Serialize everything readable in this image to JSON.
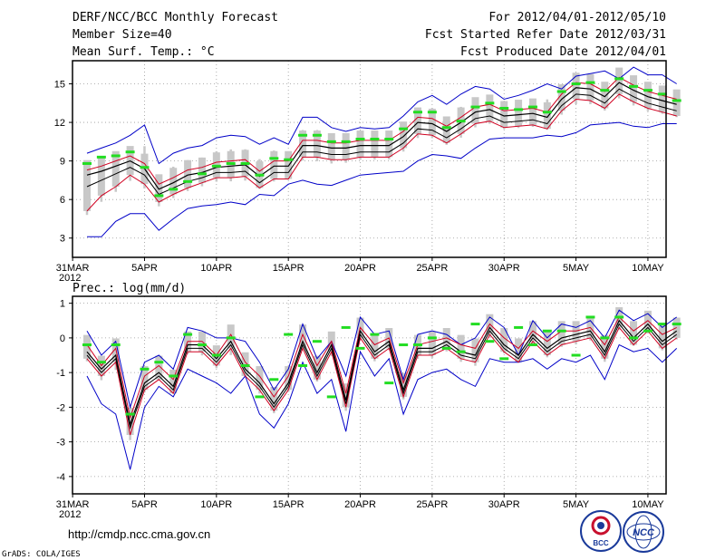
{
  "header": {
    "left": [
      "DERF/NCC/BCC Monthly Forecast",
      "Member Size=40",
      "Mean Surf. Temp.: °C"
    ],
    "right": [
      "For 2012/04/01-2012/05/10",
      "Fcst Started Refer Date 2012/03/31",
      "Fcst Produced Date 2012/04/01"
    ]
  },
  "footer": {
    "url": "http://cmdp.ncc.cma.gov.cn",
    "credit": "GrADS: COLA/IGES",
    "logo_text": "BCC",
    "logo2_text": "NCC"
  },
  "colors": {
    "mean": "#000000",
    "spread": "#d00020",
    "envelope": "#0000c8",
    "box": "#c8c8c8",
    "median": "#22dd22"
  },
  "chart_data": [
    {
      "type": "line",
      "title": "Mean Surf. Temp.: °C",
      "x_tick_labels": [
        "31MAR",
        "5APR",
        "10APR",
        "15APR",
        "20APR",
        "25APR",
        "30APR",
        "5MAY",
        "10MAY"
      ],
      "x_year_label": "2012",
      "ylim": [
        1.5,
        16.8
      ],
      "yticks": [
        3,
        6,
        9,
        12,
        15
      ],
      "series": [
        {
          "name": "max",
          "values": [
            3.1,
            3.1,
            4.3,
            4.9,
            4.9,
            3.6,
            4.5,
            5.3,
            5.5,
            5.6,
            5.8,
            5.6,
            6.4,
            6.3,
            7.2,
            7.5,
            7.2,
            7.1,
            7.5,
            7.9,
            8.0,
            8.1,
            8.2,
            9.0,
            9.5,
            9.4,
            9.2,
            10.0,
            10.7,
            10.8,
            10.8,
            10.8,
            11.0,
            10.9,
            11.2,
            11.8,
            11.9,
            12.0,
            11.7,
            11.6,
            11.9,
            11.9
          ]
        },
        {
          "name": "upper",
          "values": [
            9.6,
            10.0,
            10.4,
            11.0,
            11.8,
            8.8,
            9.6,
            10.0,
            10.2,
            10.8,
            11.0,
            10.9,
            10.3,
            10.8,
            10.3,
            12.4,
            12.4,
            11.6,
            11.3,
            11.6,
            11.5,
            11.6,
            12.5,
            13.6,
            14.1,
            13.4,
            14.2,
            14.8,
            14.6,
            13.8,
            14.1,
            14.5,
            15.0,
            14.6,
            15.6,
            15.8,
            16.0,
            15.4,
            16.3,
            15.7,
            15.7,
            15.0
          ]
        },
        {
          "name": "mean",
          "values": [
            7.9,
            8.2,
            8.6,
            9.0,
            8.4,
            6.8,
            7.3,
            7.9,
            8.1,
            8.5,
            8.6,
            8.7,
            7.8,
            8.6,
            8.6,
            10.2,
            10.2,
            10.0,
            10.0,
            10.2,
            10.2,
            10.2,
            10.9,
            12.0,
            11.9,
            11.3,
            12.0,
            12.8,
            13.0,
            12.5,
            12.6,
            12.7,
            12.4,
            13.8,
            14.7,
            14.6,
            14.0,
            15.1,
            14.5,
            14.0,
            13.7,
            13.4
          ]
        },
        {
          "name": "upper_red",
          "values": [
            8.3,
            8.6,
            9.0,
            9.4,
            8.8,
            7.2,
            7.7,
            8.3,
            8.5,
            8.9,
            9.0,
            9.1,
            8.2,
            9.0,
            9.0,
            10.6,
            10.6,
            10.4,
            10.4,
            10.6,
            10.6,
            10.6,
            11.3,
            12.4,
            12.3,
            11.7,
            12.4,
            13.2,
            13.4,
            12.9,
            13.0,
            13.1,
            12.8,
            14.2,
            15.1,
            15.0,
            14.4,
            15.5,
            14.9,
            14.4,
            14.1,
            13.8
          ]
        },
        {
          "name": "lower_red",
          "values": [
            5.1,
            6.3,
            7.0,
            7.9,
            7.2,
            5.8,
            6.4,
            6.9,
            7.3,
            7.7,
            7.7,
            7.8,
            6.9,
            7.6,
            7.6,
            9.3,
            9.3,
            9.1,
            9.1,
            9.3,
            9.3,
            9.3,
            10.0,
            11.1,
            11.0,
            10.4,
            11.1,
            11.9,
            12.1,
            11.6,
            11.7,
            11.8,
            11.5,
            12.9,
            13.8,
            13.7,
            13.1,
            14.2,
            13.6,
            13.1,
            12.8,
            12.5
          ]
        },
        {
          "name": "lower_black",
          "values": [
            7.0,
            7.5,
            8.0,
            8.5,
            7.9,
            6.4,
            6.9,
            7.4,
            7.7,
            8.1,
            8.1,
            8.2,
            7.3,
            8.1,
            8.1,
            9.7,
            9.7,
            9.5,
            9.5,
            9.7,
            9.7,
            9.7,
            10.4,
            11.5,
            11.4,
            10.8,
            11.5,
            12.3,
            12.5,
            12.0,
            12.1,
            12.2,
            11.9,
            13.3,
            14.2,
            14.1,
            13.5,
            14.6,
            14.0,
            13.5,
            13.2,
            12.9
          ]
        },
        {
          "name": "median",
          "values": [
            8.8,
            9.3,
            9.4,
            9.7,
            8.5,
            6.3,
            6.8,
            7.4,
            8.0,
            8.6,
            8.8,
            8.8,
            7.9,
            9.2,
            9.1,
            11.0,
            11.0,
            10.5,
            10.5,
            10.7,
            10.7,
            10.7,
            11.5,
            12.8,
            12.8,
            11.6,
            12.1,
            13.2,
            13.5,
            13.1,
            13.0,
            13.2,
            12.8,
            14.4,
            15.0,
            15.1,
            14.5,
            15.4,
            14.8,
            14.5,
            14.2,
            13.7
          ]
        }
      ]
    },
    {
      "type": "line",
      "title": "Prec.: log(mm/d)",
      "x_tick_labels": [
        "31MAR",
        "5APR",
        "10APR",
        "15APR",
        "20APR",
        "25APR",
        "30APR",
        "5MAY",
        "10MAY"
      ],
      "x_year_label": "2012",
      "ylim": [
        -4.5,
        1.2
      ],
      "yticks": [
        -4,
        -3,
        -2,
        -1,
        0,
        1
      ],
      "series": [
        {
          "name": "max",
          "values": [
            -1.1,
            -1.9,
            -2.2,
            -3.8,
            -2.0,
            -1.4,
            -1.7,
            -0.9,
            -1.1,
            -1.3,
            -1.6,
            -1.1,
            -2.2,
            -2.6,
            -1.9,
            -0.7,
            -1.6,
            -1.2,
            -2.7,
            -0.4,
            -1.1,
            -0.6,
            -2.2,
            -1.2,
            -1.0,
            -0.9,
            -1.2,
            -1.4,
            -0.6,
            -0.7,
            -0.7,
            -0.6,
            -0.9,
            -0.6,
            -0.7,
            -0.5,
            -1.2,
            -0.2,
            -0.4,
            -0.3,
            -0.7,
            -0.3
          ]
        },
        {
          "name": "upper",
          "values": [
            0.2,
            -0.5,
            -0.1,
            -2.0,
            -0.7,
            -0.5,
            -0.9,
            0.3,
            0.2,
            0.0,
            0.0,
            -0.1,
            -0.7,
            -1.5,
            -0.9,
            0.4,
            -0.6,
            -0.1,
            -1.1,
            0.6,
            0.1,
            0.2,
            -1.2,
            0.1,
            0.2,
            0.1,
            -0.2,
            0.0,
            0.6,
            0.3,
            -0.5,
            0.5,
            0.0,
            0.4,
            0.3,
            0.5,
            0.0,
            0.8,
            0.5,
            0.7,
            0.3,
            0.6
          ]
        },
        {
          "name": "mean",
          "values": [
            -0.4,
            -0.9,
            -0.5,
            -2.5,
            -1.3,
            -1.0,
            -1.4,
            -0.2,
            -0.2,
            -0.6,
            -0.1,
            -0.9,
            -1.3,
            -1.9,
            -1.3,
            -0.1,
            -1.0,
            -0.2,
            -1.8,
            0.2,
            -0.4,
            -0.1,
            -1.5,
            -0.3,
            -0.3,
            -0.1,
            -0.4,
            -0.5,
            0.3,
            -0.2,
            -0.5,
            0.1,
            -0.3,
            0.0,
            0.1,
            0.2,
            -0.4,
            0.5,
            0.0,
            0.4,
            -0.1,
            0.2
          ]
        },
        {
          "name": "upper_red",
          "values": [
            -0.2,
            -0.8,
            -0.3,
            -2.3,
            -1.1,
            -0.8,
            -1.2,
            -0.1,
            -0.1,
            -0.5,
            0.1,
            -0.7,
            -1.1,
            -1.7,
            -1.1,
            0.1,
            -0.8,
            -0.1,
            -1.6,
            0.3,
            -0.2,
            0.0,
            -1.3,
            -0.2,
            -0.1,
            0.0,
            -0.2,
            -0.3,
            0.4,
            0.0,
            -0.3,
            0.2,
            -0.1,
            0.2,
            0.2,
            0.3,
            -0.2,
            0.6,
            0.2,
            0.5,
            0.1,
            0.3
          ]
        },
        {
          "name": "lower_red",
          "values": [
            -0.6,
            -1.1,
            -0.7,
            -2.8,
            -1.5,
            -1.2,
            -1.6,
            -0.4,
            -0.4,
            -0.8,
            -0.3,
            -1.1,
            -1.5,
            -2.1,
            -1.5,
            -0.3,
            -1.2,
            -0.4,
            -2.0,
            0.0,
            -0.6,
            -0.3,
            -1.7,
            -0.5,
            -0.5,
            -0.3,
            -0.6,
            -0.7,
            0.1,
            -0.4,
            -0.7,
            -0.1,
            -0.5,
            -0.2,
            -0.1,
            0.0,
            -0.6,
            0.3,
            -0.2,
            0.2,
            -0.3,
            0.0
          ]
        },
        {
          "name": "lower_black",
          "values": [
            -0.5,
            -1.0,
            -0.6,
            -2.6,
            -1.4,
            -1.1,
            -1.5,
            -0.3,
            -0.3,
            -0.7,
            -0.2,
            -1.0,
            -1.4,
            -2.0,
            -1.4,
            -0.2,
            -1.1,
            -0.3,
            -1.9,
            0.1,
            -0.5,
            -0.2,
            -1.6,
            -0.4,
            -0.4,
            -0.2,
            -0.5,
            -0.6,
            0.2,
            -0.3,
            -0.6,
            0.0,
            -0.4,
            -0.1,
            0.0,
            0.1,
            -0.5,
            0.4,
            -0.1,
            0.3,
            -0.2,
            0.1
          ]
        },
        {
          "name": "median",
          "values": [
            -0.2,
            -0.7,
            -0.2,
            -2.2,
            -0.9,
            -0.7,
            -1.1,
            0.1,
            -0.2,
            -0.5,
            0.0,
            -0.8,
            -1.7,
            -1.2,
            0.1,
            -0.8,
            -0.1,
            -1.7,
            0.3,
            -0.3,
            0.1,
            -1.3,
            -0.2,
            -0.2,
            0.0,
            -0.3,
            -0.4,
            0.4,
            -0.1,
            -0.6,
            0.3,
            -0.2,
            0.2,
            0.2,
            -0.5,
            0.6,
            0.0,
            0.6,
            0.0,
            0.2,
            0.4,
            0.4
          ]
        }
      ]
    }
  ]
}
